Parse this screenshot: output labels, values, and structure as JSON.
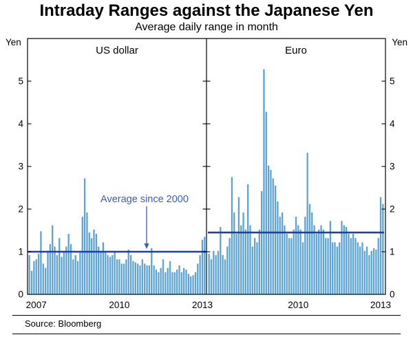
{
  "title": "Intraday Ranges against the Japanese Yen",
  "subtitle": "Average daily range in month",
  "source": "Source: Bloomberg",
  "colors": {
    "bar": "#5BA3D6",
    "avg_line": "#1F419E",
    "annotation": "#3A60B5",
    "frame": "#000000"
  },
  "chart_data": {
    "type": "bar",
    "title": "Intraday Ranges against the Japanese Yen",
    "subtitle": "Average daily range in month",
    "ylabel": "Yen",
    "ylim": [
      0,
      6
    ],
    "yticks": [
      0,
      1,
      2,
      3,
      4,
      5
    ],
    "x_start": "2006-10",
    "x_end": "2013-02",
    "annotation": {
      "text": "Average since 2000",
      "panel": 0
    },
    "panels": [
      {
        "label": "US dollar",
        "average_since_2000": 1.0,
        "year_labels": [
          2007,
          2010,
          2013
        ],
        "values": [
          0.92,
          0.55,
          0.78,
          0.82,
          0.95,
          1.48,
          0.72,
          0.62,
          1.02,
          1.18,
          1.62,
          1.12,
          0.92,
          1.32,
          0.88,
          1.02,
          1.12,
          1.42,
          1.18,
          0.82,
          0.92,
          0.78,
          1.02,
          1.82,
          2.72,
          1.92,
          1.45,
          1.32,
          1.52,
          1.42,
          1.12,
          1.02,
          1.22,
          1.02,
          0.92,
          0.88,
          0.92,
          1.02,
          0.82,
          0.82,
          0.72,
          0.72,
          0.82,
          1.05,
          0.92,
          0.78,
          0.75,
          0.72,
          0.68,
          0.82,
          0.72,
          0.68,
          0.68,
          1.08,
          0.68,
          0.58,
          0.52,
          0.62,
          0.82,
          0.52,
          0.62,
          0.78,
          0.52,
          0.52,
          0.58,
          0.68,
          0.52,
          0.62,
          0.58,
          0.48,
          0.42,
          0.45,
          0.52,
          0.72,
          0.92,
          1.28,
          1.35
        ]
      },
      {
        "label": "Euro",
        "average_since_2000": 1.45,
        "year_labels": [
          2010,
          2013
        ],
        "values": [
          0.95,
          0.82,
          1.02,
          0.92,
          1.02,
          1.58,
          0.92,
          0.82,
          1.12,
          1.32,
          2.75,
          1.92,
          1.42,
          2.28,
          1.62,
          1.92,
          1.52,
          2.58,
          1.62,
          1.12,
          1.32,
          1.22,
          1.52,
          2.42,
          5.28,
          4.28,
          3.02,
          2.92,
          2.72,
          2.55,
          2.18,
          1.82,
          1.92,
          1.62,
          1.42,
          1.32,
          1.32,
          1.52,
          1.82,
          1.62,
          1.52,
          1.22,
          1.82,
          3.32,
          2.12,
          1.92,
          1.62,
          1.42,
          1.52,
          1.62,
          1.52,
          1.32,
          1.32,
          1.72,
          1.22,
          1.22,
          1.12,
          1.22,
          1.72,
          1.62,
          1.58,
          1.42,
          1.32,
          1.42,
          1.32,
          1.22,
          1.12,
          1.22,
          1.02,
          1.12,
          0.92,
          1.02,
          1.08,
          1.05,
          1.32,
          2.28,
          2.12
        ]
      }
    ]
  }
}
